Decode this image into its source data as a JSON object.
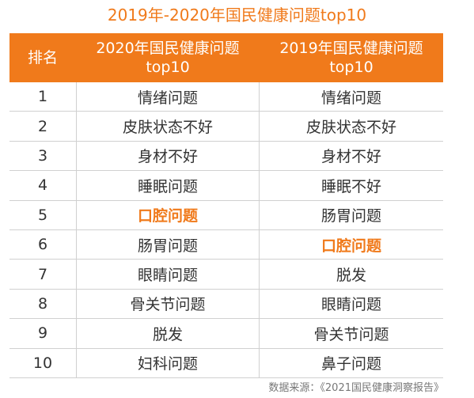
{
  "title": "2019年-2020年国民健康问题top10",
  "highlight_color": "#f07a1b",
  "table": {
    "headers": {
      "rank": "排名",
      "col2020_line1": "2020年国民健康问题",
      "col2020_line2": "top10",
      "col2019_line1": "2019年国民健康问题",
      "col2019_line2": "top10"
    },
    "rows": [
      {
        "rank": "1",
        "y2020": "情绪问题",
        "y2019": "情绪问题",
        "hl2020": false,
        "hl2019": false
      },
      {
        "rank": "2",
        "y2020": "皮肤状态不好",
        "y2019": "皮肤状态不好",
        "hl2020": false,
        "hl2019": false
      },
      {
        "rank": "3",
        "y2020": "身材不好",
        "y2019": "身材不好",
        "hl2020": false,
        "hl2019": false
      },
      {
        "rank": "4",
        "y2020": "睡眠问题",
        "y2019": "睡眠不好",
        "hl2020": false,
        "hl2019": false
      },
      {
        "rank": "5",
        "y2020": "口腔问题",
        "y2019": "肠胃问题",
        "hl2020": true,
        "hl2019": false
      },
      {
        "rank": "6",
        "y2020": "肠胃问题",
        "y2019": "口腔问题",
        "hl2020": false,
        "hl2019": true
      },
      {
        "rank": "7",
        "y2020": "眼睛问题",
        "y2019": "脱发",
        "hl2020": false,
        "hl2019": false
      },
      {
        "rank": "8",
        "y2020": "骨关节问题",
        "y2019": "眼睛问题",
        "hl2020": false,
        "hl2019": false
      },
      {
        "rank": "9",
        "y2020": "脱发",
        "y2019": "骨关节问题",
        "hl2020": false,
        "hl2019": false
      },
      {
        "rank": "10",
        "y2020": "妇科问题",
        "y2019": "鼻子问题",
        "hl2020": false,
        "hl2019": false
      }
    ]
  },
  "source": "数据来源：《2021国民健康洞察报告》"
}
